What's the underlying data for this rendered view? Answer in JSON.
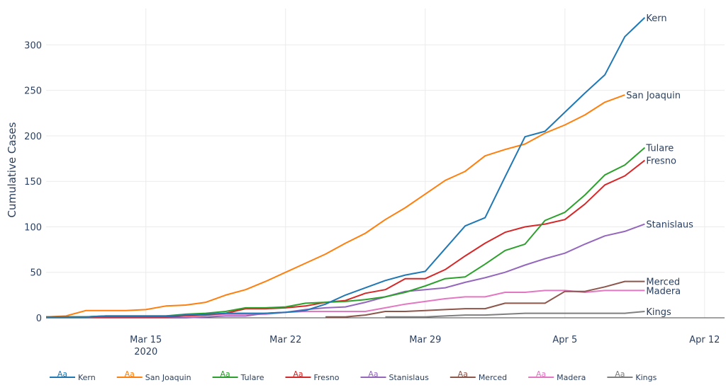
{
  "chart_data": {
    "type": "line",
    "title": "",
    "xlabel": "",
    "ylabel": "Cumulative Cases",
    "ylim": [
      0,
      340
    ],
    "xlim": [
      "2020-03-10",
      "2020-04-13"
    ],
    "grid": true,
    "legend_position": "bottom",
    "y_ticks": [
      0,
      50,
      100,
      150,
      200,
      250,
      300
    ],
    "x_ticks": [
      {
        "date": "2020-03-15",
        "label": "Mar 15",
        "sublabel": "2020"
      },
      {
        "date": "2020-03-22",
        "label": "Mar 22",
        "sublabel": ""
      },
      {
        "date": "2020-03-29",
        "label": "Mar 29",
        "sublabel": ""
      },
      {
        "date": "2020-04-05",
        "label": "Apr 5",
        "sublabel": ""
      },
      {
        "date": "2020-04-12",
        "label": "Apr 12",
        "sublabel": ""
      }
    ],
    "series": [
      {
        "name": "Kern",
        "color": "#1f77b4",
        "start": "2020-03-10",
        "values": [
          1,
          1,
          1,
          2,
          2,
          2,
          2,
          3,
          4,
          5,
          5,
          5,
          6,
          8,
          15,
          25,
          33,
          41,
          47,
          51,
          76,
          101,
          110,
          155,
          199,
          205,
          226,
          247,
          267,
          309,
          330
        ]
      },
      {
        "name": "San Joaquin",
        "color": "#ff7f0e",
        "start": "2020-03-10",
        "values": [
          1,
          2,
          8,
          8,
          8,
          9,
          13,
          14,
          17,
          25,
          31,
          40,
          50,
          60,
          70,
          82,
          93,
          108,
          121,
          136,
          151,
          161,
          178,
          185,
          191,
          203,
          212,
          223,
          237,
          245
        ]
      },
      {
        "name": "Tulare",
        "color": "#2ca02c",
        "start": "2020-03-10",
        "values": [
          1,
          1,
          1,
          2,
          2,
          2,
          2,
          4,
          5,
          7,
          11,
          11,
          12,
          16,
          17,
          18,
          20,
          23,
          28,
          35,
          43,
          45,
          59,
          74,
          81,
          107,
          116,
          135,
          157,
          168,
          187
        ]
      },
      {
        "name": "Fresno",
        "color": "#d62728",
        "start": "2020-03-10",
        "values": [
          1,
          1,
          1,
          1,
          1,
          1,
          1,
          2,
          3,
          5,
          10,
          10,
          11,
          13,
          17,
          19,
          27,
          31,
          43,
          43,
          53,
          68,
          82,
          94,
          100,
          103,
          108,
          125,
          146,
          156,
          173
        ]
      },
      {
        "name": "Stanislaus",
        "color": "#9467bd",
        "start": "2020-03-10",
        "values": [
          0,
          0,
          0,
          0,
          0,
          0,
          0,
          0,
          1,
          2,
          2,
          5,
          6,
          9,
          11,
          12,
          17,
          23,
          29,
          31,
          33,
          39,
          44,
          50,
          58,
          65,
          71,
          81,
          90,
          95,
          103
        ]
      },
      {
        "name": "Merced",
        "color": "#8c564b",
        "start": "2020-03-24",
        "values": [
          1,
          1,
          3,
          7,
          7,
          8,
          9,
          10,
          10,
          16,
          16,
          16,
          29,
          29,
          34,
          40,
          40
        ]
      },
      {
        "name": "Madera",
        "color": "#e377c2",
        "start": "2020-03-10",
        "values": [
          0,
          0,
          0,
          1,
          1,
          1,
          1,
          2,
          3,
          4,
          4,
          4,
          6,
          7,
          7,
          7,
          7,
          11,
          15,
          18,
          21,
          23,
          23,
          28,
          28,
          30,
          30,
          28,
          30,
          30,
          30
        ]
      },
      {
        "name": "Kings",
        "color": "#7f7f7f",
        "start": "2020-03-27",
        "values": [
          1,
          1,
          1,
          2,
          3,
          3,
          4,
          5,
          5,
          5,
          5,
          5,
          5,
          7
        ]
      }
    ]
  },
  "legend": {
    "swatch_text": "Aa"
  }
}
